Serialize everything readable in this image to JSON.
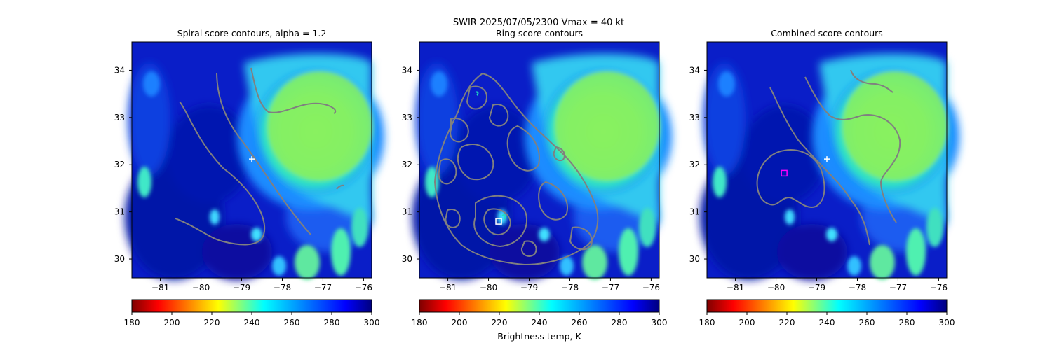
{
  "suptitle": "SWIR  2025/07/05/2300    Vmax = 40 kt",
  "colorbar_label": "Brightness temp, K",
  "colormap": [
    "#7f0000",
    "#ff0000",
    "#ffff00",
    "#00ffff",
    "#0000ff",
    "#00007f"
  ],
  "chart_data": [
    {
      "type": "heatmap",
      "title": "Spiral score contours, alpha =  1.2",
      "xlim": [
        -81.7,
        -75.8
      ],
      "ylim": [
        29.6,
        34.6
      ],
      "xticks": [
        -81,
        -80,
        -79,
        -78,
        -77,
        -76
      ],
      "yticks": [
        30,
        31,
        32,
        33,
        34
      ],
      "contour_color": "#808080",
      "marker": {
        "shape": "plus",
        "x": -78.75,
        "y": 32.12,
        "color": "#ffffff"
      },
      "colorbar": {
        "min": 180,
        "max": 300,
        "ticks": [
          180,
          200,
          220,
          240,
          260,
          280,
          300
        ],
        "reversed_jet": true
      }
    },
    {
      "type": "heatmap",
      "title": "Ring score contours",
      "xlim": [
        -81.7,
        -75.8
      ],
      "ylim": [
        29.6,
        34.6
      ],
      "xticks": [
        -81,
        -80,
        -79,
        -78,
        -77,
        -76
      ],
      "yticks": [
        30,
        31,
        32,
        33,
        34
      ],
      "contour_color": "#808080",
      "marker": {
        "shape": "square",
        "x": -79.75,
        "y": 30.8,
        "color": "#ffffff"
      },
      "colorbar": {
        "min": 180,
        "max": 300,
        "ticks": [
          180,
          200,
          220,
          240,
          260,
          280,
          300
        ],
        "reversed_jet": true
      }
    },
    {
      "type": "heatmap",
      "title": "Combined score contours",
      "xlim": [
        -81.7,
        -75.8
      ],
      "ylim": [
        29.6,
        34.6
      ],
      "xticks": [
        -81,
        -80,
        -79,
        -78,
        -77,
        -76
      ],
      "yticks": [
        30,
        31,
        32,
        33,
        34
      ],
      "contour_color": "#808080",
      "markers": [
        {
          "shape": "plus",
          "x": -78.75,
          "y": 32.12,
          "color": "#ffffff"
        },
        {
          "shape": "square",
          "x": -79.8,
          "y": 31.82,
          "color": "#ff00ff"
        }
      ],
      "colorbar": {
        "min": 180,
        "max": 300,
        "ticks": [
          180,
          200,
          220,
          240,
          260,
          280,
          300
        ],
        "reversed_jet": true
      }
    }
  ]
}
